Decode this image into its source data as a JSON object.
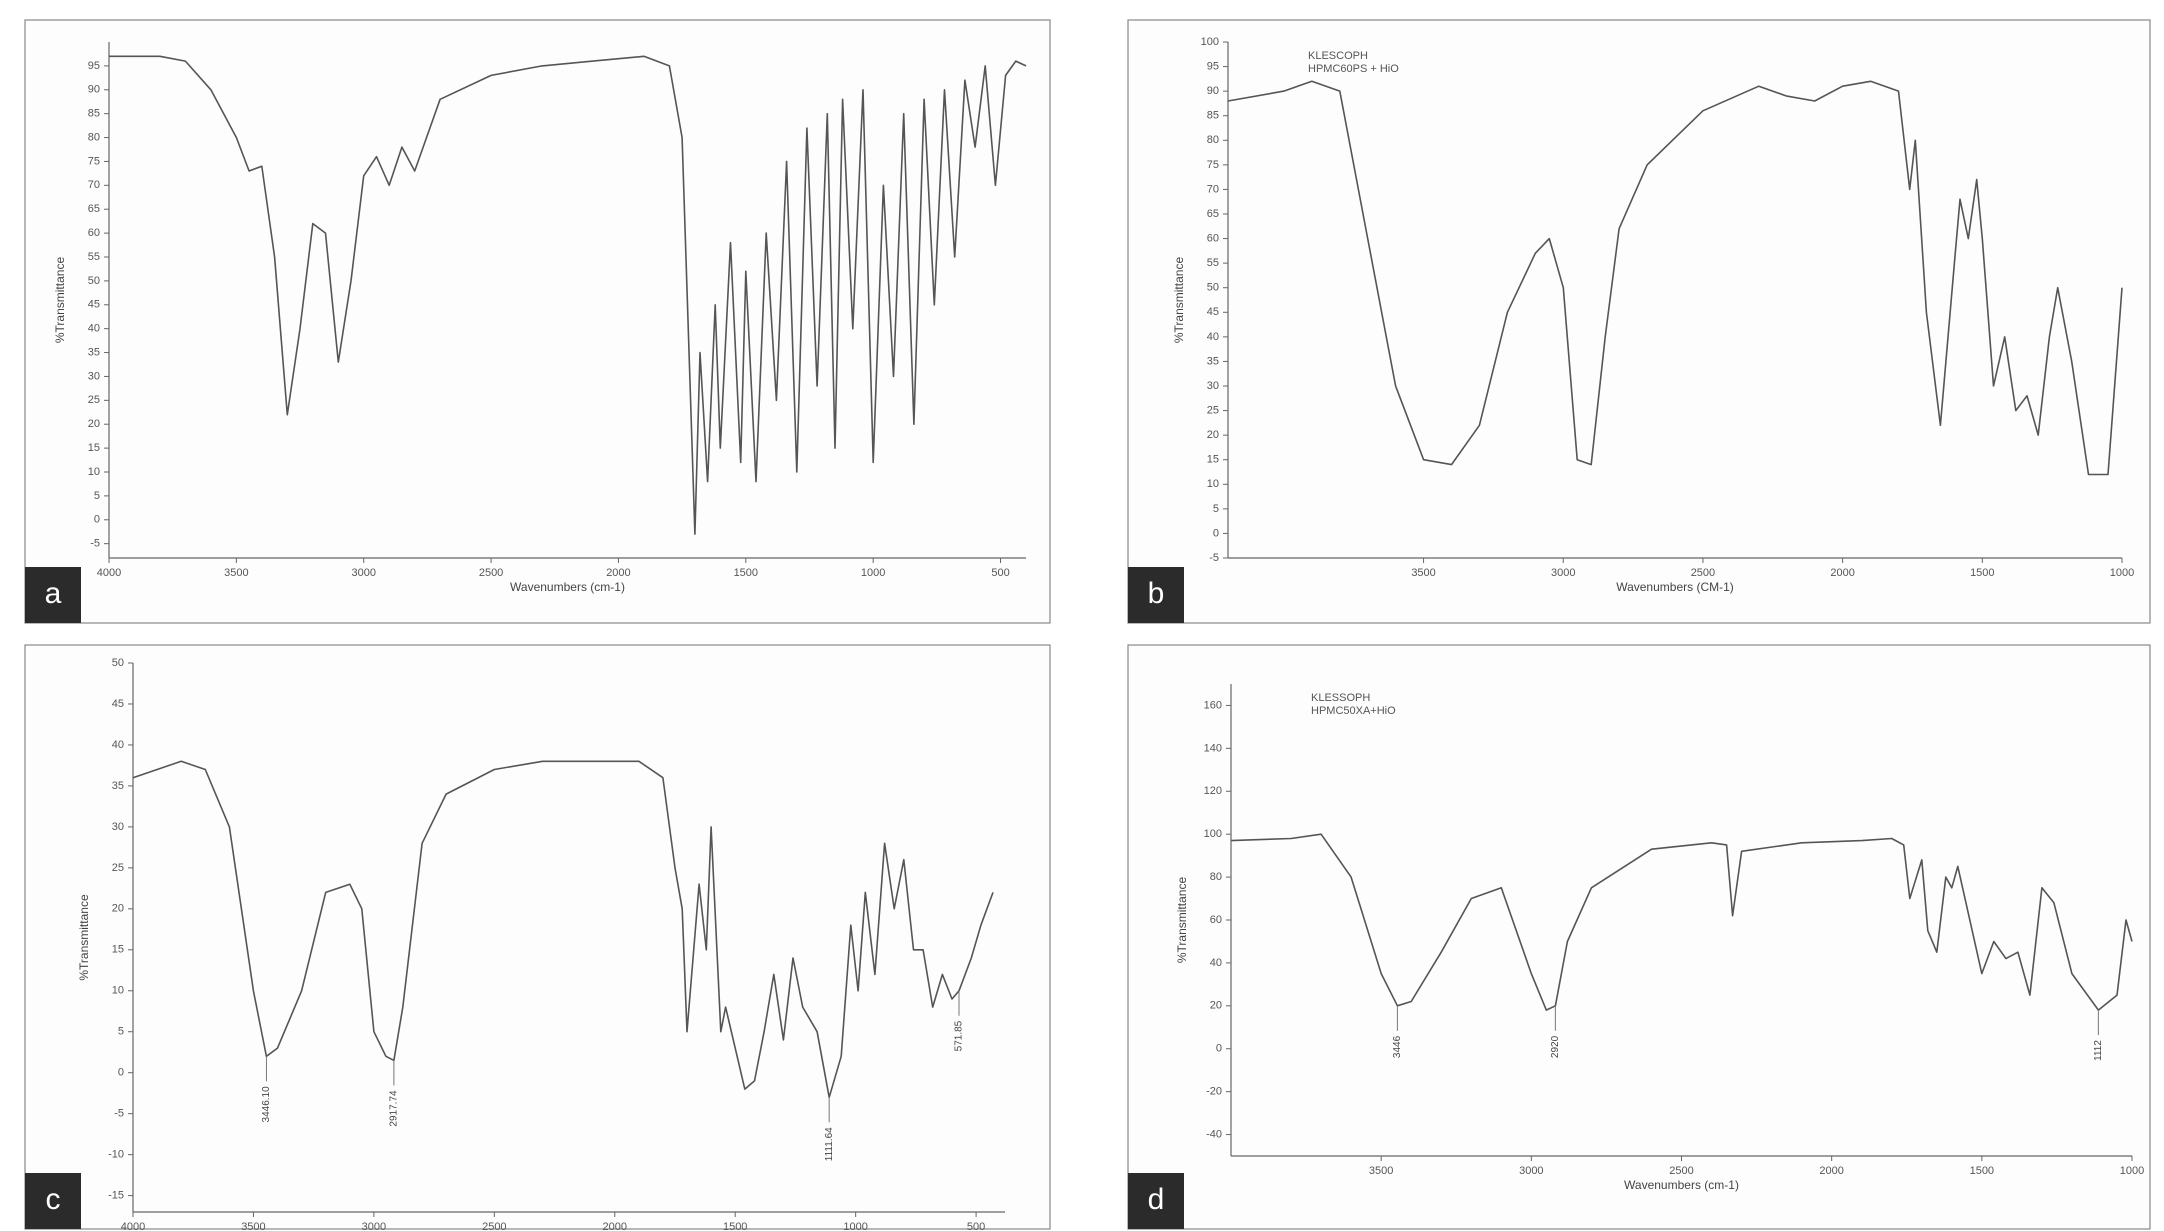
{
  "chart_data": [
    {
      "type": "line",
      "label": "a",
      "ylabel": "%Transmittance",
      "xlabel": "Wavenumbers (cm-1)",
      "color": "#555555",
      "xlim": [
        4000,
        400
      ],
      "xticks": [
        4000,
        3500,
        3000,
        2500,
        2000,
        1500,
        1000,
        500
      ],
      "ylim": [
        -8,
        100
      ],
      "yticks": [
        -5,
        0,
        5,
        10,
        15,
        20,
        25,
        30,
        35,
        40,
        45,
        50,
        55,
        60,
        65,
        70,
        75,
        80,
        85,
        90,
        95
      ],
      "x": [
        4000,
        3900,
        3800,
        3700,
        3600,
        3500,
        3450,
        3400,
        3350,
        3300,
        3250,
        3200,
        3150,
        3100,
        3050,
        3000,
        2950,
        2900,
        2850,
        2800,
        2700,
        2500,
        2300,
        2100,
        1900,
        1800,
        1750,
        1700,
        1680,
        1650,
        1620,
        1600,
        1560,
        1520,
        1500,
        1460,
        1420,
        1380,
        1340,
        1300,
        1260,
        1220,
        1180,
        1150,
        1120,
        1080,
        1040,
        1000,
        960,
        920,
        880,
        840,
        800,
        760,
        720,
        680,
        640,
        600,
        560,
        520,
        480,
        440,
        400
      ],
      "values": [
        97,
        97,
        97,
        96,
        90,
        80,
        73,
        74,
        55,
        22,
        40,
        62,
        60,
        33,
        50,
        72,
        76,
        70,
        78,
        73,
        88,
        93,
        95,
        96,
        97,
        95,
        80,
        -3,
        35,
        8,
        45,
        15,
        58,
        12,
        52,
        8,
        60,
        25,
        75,
        10,
        82,
        28,
        85,
        15,
        88,
        40,
        90,
        12,
        70,
        30,
        85,
        20,
        88,
        45,
        90,
        55,
        92,
        78,
        95,
        70,
        93,
        96,
        95
      ]
    },
    {
      "type": "line",
      "label": "b",
      "ylabel": "%Transmittance",
      "xlabel": "Wavenumbers (CM-1)",
      "color": "#555555",
      "notes": [
        "KLESCOPH",
        "HPMC60PS + HiO"
      ],
      "xlim": [
        4200,
        1000
      ],
      "xticks": [
        3500,
        3000,
        2500,
        2000,
        1500,
        1000
      ],
      "ylim": [
        -5,
        100
      ],
      "yticks": [
        -5,
        0,
        5,
        10,
        15,
        20,
        25,
        30,
        35,
        40,
        45,
        50,
        55,
        60,
        65,
        70,
        75,
        80,
        85,
        90,
        95,
        100
      ],
      "x": [
        4200,
        4000,
        3900,
        3800,
        3700,
        3600,
        3500,
        3400,
        3300,
        3200,
        3100,
        3050,
        3000,
        2950,
        2900,
        2850,
        2800,
        2700,
        2500,
        2300,
        2200,
        2100,
        2000,
        1900,
        1800,
        1760,
        1740,
        1700,
        1650,
        1600,
        1580,
        1550,
        1520,
        1500,
        1460,
        1420,
        1380,
        1340,
        1300,
        1260,
        1230,
        1180,
        1120,
        1050,
        1000
      ],
      "values": [
        88,
        90,
        92,
        90,
        60,
        30,
        15,
        14,
        22,
        45,
        57,
        60,
        50,
        15,
        14,
        40,
        62,
        75,
        86,
        91,
        89,
        88,
        91,
        92,
        90,
        70,
        80,
        45,
        22,
        55,
        68,
        60,
        72,
        60,
        30,
        40,
        25,
        28,
        20,
        40,
        50,
        35,
        12,
        12,
        50
      ]
    },
    {
      "type": "line",
      "label": "c",
      "ylabel": "%Transmittance",
      "xlabel": "Wavenumbers (cm-1)",
      "color": "#555555",
      "xlim": [
        4000,
        380
      ],
      "xticks": [
        4000,
        3500,
        3000,
        2500,
        2000,
        1500,
        1000,
        500
      ],
      "ylim": [
        -17,
        50
      ],
      "yticks": [
        -15,
        -10,
        -5,
        0,
        5,
        10,
        15,
        20,
        25,
        30,
        35,
        40,
        45,
        50
      ],
      "x": [
        4000,
        3900,
        3800,
        3700,
        3600,
        3500,
        3446,
        3400,
        3300,
        3200,
        3100,
        3050,
        3000,
        2950,
        2917,
        2880,
        2800,
        2700,
        2500,
        2300,
        2100,
        1900,
        1800,
        1750,
        1720,
        1700,
        1650,
        1620,
        1600,
        1560,
        1540,
        1500,
        1460,
        1420,
        1380,
        1340,
        1300,
        1260,
        1220,
        1160,
        1110,
        1060,
        1020,
        990,
        960,
        920,
        880,
        840,
        800,
        760,
        720,
        680,
        640,
        600,
        571,
        520,
        480,
        430
      ],
      "values": [
        36,
        37,
        38,
        37,
        30,
        10,
        2,
        3,
        10,
        22,
        23,
        20,
        5,
        2,
        1.5,
        8,
        28,
        34,
        37,
        38,
        38,
        38,
        36,
        25,
        20,
        5,
        23,
        15,
        30,
        5,
        8,
        3,
        -2,
        -1,
        5,
        12,
        4,
        14,
        8,
        5,
        -3,
        2,
        18,
        10,
        22,
        12,
        28,
        20,
        26,
        15,
        15,
        8,
        12,
        9,
        10,
        14,
        18,
        22
      ],
      "annotations": [
        {
          "label": "3446.10",
          "x": 3446,
          "y": 2
        },
        {
          "label": "2917.74",
          "x": 2917,
          "y": 1.5
        },
        {
          "label": "1111.64",
          "x": 1110,
          "y": -3
        },
        {
          "label": "571.85",
          "x": 571,
          "y": 10
        }
      ]
    },
    {
      "type": "line",
      "label": "d",
      "ylabel": "%Transmittance",
      "xlabel": "Wavenumbers (cm-1)",
      "color": "#555555",
      "notes": [
        "KLESSOPH",
        "HPMC50XA+HiO"
      ],
      "xlim": [
        4000,
        1000
      ],
      "xticks": [
        3500,
        3000,
        2500,
        2000,
        1500,
        1000
      ],
      "ylim": [
        -50,
        170
      ],
      "yticks": [
        -40,
        -20,
        0,
        20,
        40,
        60,
        80,
        100,
        120,
        140,
        160
      ],
      "x": [
        4000,
        3800,
        3700,
        3600,
        3500,
        3446,
        3400,
        3300,
        3200,
        3100,
        3000,
        2950,
        2920,
        2880,
        2800,
        2600,
        2400,
        2350,
        2330,
        2300,
        2100,
        1900,
        1800,
        1760,
        1740,
        1700,
        1680,
        1650,
        1620,
        1600,
        1580,
        1500,
        1460,
        1420,
        1380,
        1340,
        1300,
        1260,
        1200,
        1112,
        1050,
        1020,
        1000
      ],
      "values": [
        97,
        98,
        100,
        80,
        35,
        20,
        22,
        45,
        70,
        75,
        35,
        18,
        20,
        50,
        75,
        93,
        96,
        95,
        62,
        92,
        96,
        97,
        98,
        95,
        70,
        88,
        55,
        45,
        80,
        75,
        85,
        35,
        50,
        42,
        45,
        25,
        75,
        68,
        35,
        18,
        25,
        60,
        50
      ],
      "annotations": [
        {
          "label": "3446",
          "x": 3446,
          "y": 20
        },
        {
          "label": "2920",
          "x": 2920,
          "y": 20
        },
        {
          "label": "1112",
          "x": 1112,
          "y": 18
        }
      ]
    }
  ]
}
